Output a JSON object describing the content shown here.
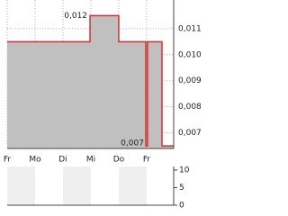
{
  "chart_data": {
    "type": "line",
    "x": [
      0,
      2.97,
      2.97,
      4.0,
      4.0,
      4.97,
      4.97,
      5.03,
      5.03,
      5.55,
      5.55,
      5.97
    ],
    "series": [
      {
        "color": "#d32f2f",
        "fill": "#c0c0c0",
        "values": [
          0.0105,
          0.0105,
          0.0115,
          0.0115,
          0.0105,
          0.0105,
          0.0065,
          0.0065,
          0.0105,
          0.0105,
          0.0065,
          0.0065
        ]
      }
    ],
    "xlim": [
      0,
      5.97
    ],
    "xticks": [
      {
        "value": 0,
        "label": "Fr"
      },
      {
        "value": 1,
        "label": "Mo"
      },
      {
        "value": 2,
        "label": "Di"
      },
      {
        "value": 3,
        "label": "Mi"
      },
      {
        "value": 4,
        "label": "Do"
      },
      {
        "value": 5,
        "label": "Fr"
      }
    ],
    "ylim": [
      0.0064,
      0.0121
    ],
    "yticks": [
      {
        "value": 0.011,
        "label": "0,011"
      },
      {
        "value": 0.01,
        "label": "0,010"
      },
      {
        "value": 0.009,
        "label": "0,009"
      },
      {
        "value": 0.008,
        "label": "0,008"
      },
      {
        "value": 0.007,
        "label": "0,007"
      }
    ],
    "annotations": [
      {
        "x": 3.5,
        "y": 0.0115,
        "label": "0,012"
      },
      {
        "x": 5.0,
        "y": 0.0065,
        "label": "0,007"
      }
    ],
    "grid": true,
    "volume": {
      "ylim": [
        0,
        11
      ],
      "yticks": [
        10,
        5,
        0
      ]
    }
  }
}
